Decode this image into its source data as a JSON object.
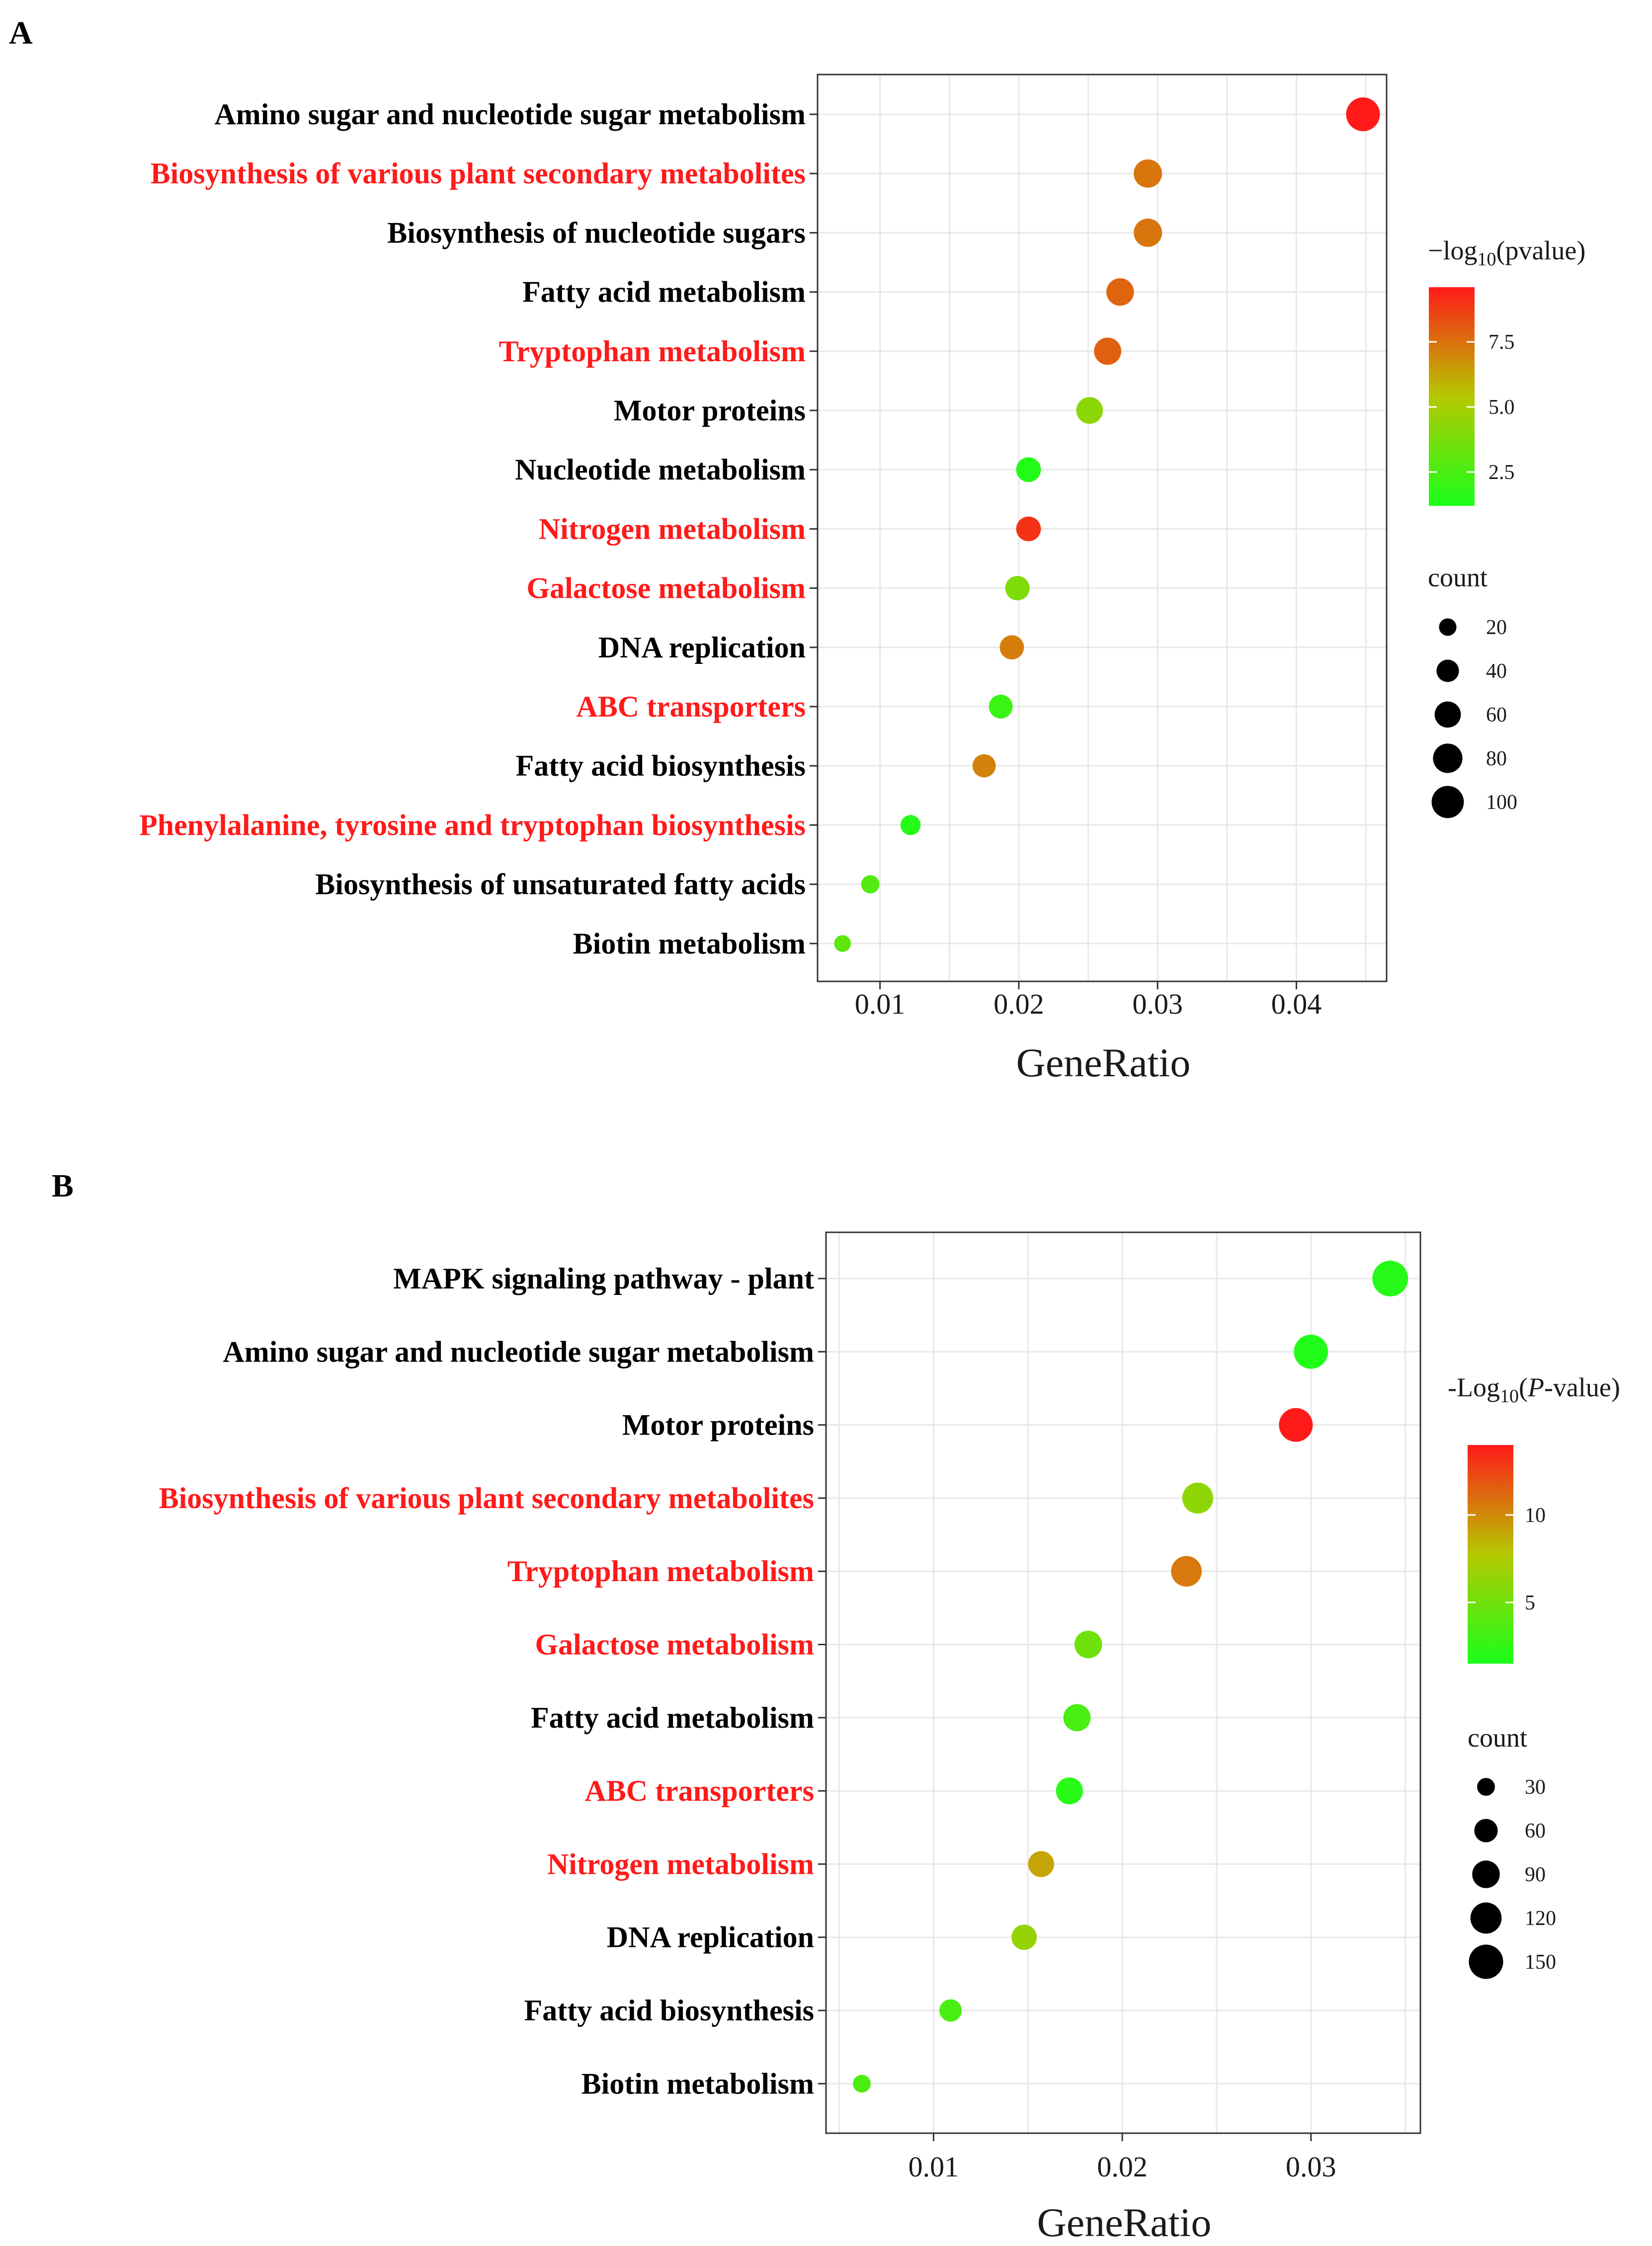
{
  "colors": {
    "highlight": "#ff1a1a",
    "normal": "#000000",
    "grad_low": "#1aff1a",
    "grad_mid": "#b5c800",
    "grad_high": "#ff1a1a",
    "grid": "#e8e8e8",
    "panel_border": "#333333"
  },
  "chart_data": [
    {
      "panel": "A",
      "type": "scatter",
      "xlabel": "GeneRatio",
      "x_ticks": [
        "0.01",
        "0.02",
        "0.03",
        "0.04"
      ],
      "xlim": [
        0.0055,
        0.0465
      ],
      "color_legend": {
        "title_main": "−log",
        "title_sub": "10",
        "title_rest": "(pvalue)",
        "min": 1.2,
        "max": 9.6,
        "ticks": [
          "2.5",
          "5.0",
          "7.5"
        ],
        "tick_values": [
          2.5,
          5.0,
          7.5
        ]
      },
      "size_legend": {
        "title": "count",
        "labels": [
          "20",
          "40",
          "60",
          "80",
          "100"
        ],
        "values": [
          20,
          40,
          60,
          80,
          100
        ]
      },
      "count_range": [
        10,
        112
      ],
      "points": [
        {
          "label": "Amino sugar and nucleotide sugar metabolism",
          "x": 0.0448,
          "pvalue_log": 9.6,
          "count": 112,
          "highlight": false
        },
        {
          "label": "Biosynthesis of various plant secondary metabolites",
          "x": 0.0293,
          "pvalue_log": 7.4,
          "count": 73,
          "highlight": true
        },
        {
          "label": "Biosynthesis of nucleotide sugars",
          "x": 0.0293,
          "pvalue_log": 7.4,
          "count": 73,
          "highlight": false
        },
        {
          "label": "Fatty acid metabolism",
          "x": 0.0273,
          "pvalue_log": 7.8,
          "count": 68,
          "highlight": false
        },
        {
          "label": "Tryptophan metabolism",
          "x": 0.0264,
          "pvalue_log": 7.9,
          "count": 66,
          "highlight": true
        },
        {
          "label": "Motor proteins",
          "x": 0.0251,
          "pvalue_log": 4.3,
          "count": 63,
          "highlight": false
        },
        {
          "label": "Nucleotide metabolism",
          "x": 0.0207,
          "pvalue_log": 1.5,
          "count": 52,
          "highlight": false
        },
        {
          "label": "Nitrogen metabolism",
          "x": 0.0207,
          "pvalue_log": 9.0,
          "count": 52,
          "highlight": true
        },
        {
          "label": "Galactose metabolism",
          "x": 0.0199,
          "pvalue_log": 3.9,
          "count": 50,
          "highlight": true
        },
        {
          "label": "DNA replication",
          "x": 0.0195,
          "pvalue_log": 7.2,
          "count": 49,
          "highlight": false
        },
        {
          "label": "ABC transporters",
          "x": 0.0187,
          "pvalue_log": 2.0,
          "count": 47,
          "highlight": true
        },
        {
          "label": "Fatty acid biosynthesis",
          "x": 0.0175,
          "pvalue_log": 7.1,
          "count": 44,
          "highlight": false
        },
        {
          "label": "Phenylalanine, tyrosine and tryptophan biosynthesis",
          "x": 0.0122,
          "pvalue_log": 1.5,
          "count": 30,
          "highlight": true
        },
        {
          "label": "Biosynthesis of unsaturated fatty acids",
          "x": 0.0093,
          "pvalue_log": 2.7,
          "count": 23,
          "highlight": false
        },
        {
          "label": "Biotin metabolism",
          "x": 0.0073,
          "pvalue_log": 3.1,
          "count": 18,
          "highlight": false
        }
      ]
    },
    {
      "panel": "B",
      "type": "scatter",
      "xlabel": "GeneRatio",
      "x_ticks": [
        "0.01",
        "0.02",
        "0.03"
      ],
      "xlim": [
        0.0043,
        0.0358
      ],
      "color_legend": {
        "title_main": "-Log",
        "title_sub": "10",
        "title_pre2": "(",
        "title_italic": "P",
        "title_rest": "-value)",
        "min": 1.5,
        "max": 14.0,
        "ticks": [
          "5",
          "10"
        ],
        "tick_values": [
          5,
          10
        ]
      },
      "size_legend": {
        "title": "count",
        "labels": [
          "30",
          "60",
          "90",
          "120",
          "150"
        ],
        "values": [
          30,
          60,
          90,
          120,
          150
        ]
      },
      "count_range": [
        15,
        165
      ],
      "points": [
        {
          "label": "MAPK signaling pathway - plant",
          "x": 0.0342,
          "pvalue_log": 2.0,
          "count": 165,
          "highlight": false
        },
        {
          "label": "Amino sugar and nucleotide sugar metabolism",
          "x": 0.03,
          "pvalue_log": 1.8,
          "count": 148,
          "highlight": false
        },
        {
          "label": "Motor proteins",
          "x": 0.0292,
          "pvalue_log": 14.0,
          "count": 145,
          "highlight": false
        },
        {
          "label": "Biosynthesis of various plant secondary metabolites",
          "x": 0.024,
          "pvalue_log": 6.2,
          "count": 118,
          "highlight": true
        },
        {
          "label": "Tryptophan metabolism",
          "x": 0.0234,
          "pvalue_log": 10.6,
          "count": 115,
          "highlight": true
        },
        {
          "label": "Galactose metabolism",
          "x": 0.0182,
          "pvalue_log": 4.9,
          "count": 90,
          "highlight": true
        },
        {
          "label": "Fatty acid metabolism",
          "x": 0.0176,
          "pvalue_log": 3.4,
          "count": 87,
          "highlight": false
        },
        {
          "label": "ABC transporters",
          "x": 0.0172,
          "pvalue_log": 2.1,
          "count": 85,
          "highlight": true
        },
        {
          "label": "Nitrogen metabolism",
          "x": 0.0157,
          "pvalue_log": 9.0,
          "count": 78,
          "highlight": true
        },
        {
          "label": "DNA replication",
          "x": 0.0148,
          "pvalue_log": 6.5,
          "count": 73,
          "highlight": false
        },
        {
          "label": "Fatty acid biosynthesis",
          "x": 0.0109,
          "pvalue_log": 3.3,
          "count": 54,
          "highlight": false
        },
        {
          "label": "Biotin metabolism",
          "x": 0.0062,
          "pvalue_log": 3.6,
          "count": 30,
          "highlight": false
        }
      ]
    }
  ]
}
